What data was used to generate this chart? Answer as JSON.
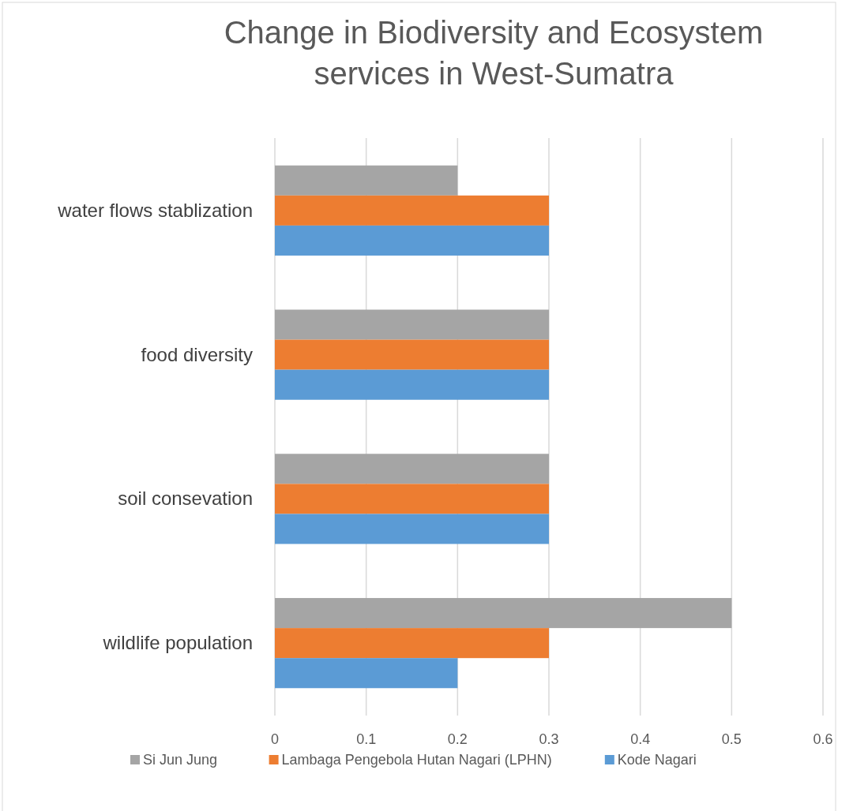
{
  "chart_data": {
    "type": "bar",
    "orientation": "horizontal",
    "title": "Change in Biodiversity and Ecosystem services in West-Sumatra",
    "categories": [
      "water flows stablization",
      "food diversity",
      "soil consevation",
      "wildlife population"
    ],
    "series": [
      {
        "name": "Si Jun Jung",
        "color": "#a5a5a5",
        "values": [
          0.2,
          0.3,
          0.3,
          0.5
        ]
      },
      {
        "name": "Lambaga Pengebola Hutan Nagari (LPHN)",
        "color": "#ed7d31",
        "values": [
          0.3,
          0.3,
          0.3,
          0.3
        ]
      },
      {
        "name": "Kode Nagari",
        "color": "#5b9bd5",
        "values": [
          0.3,
          0.3,
          0.3,
          0.2
        ]
      }
    ],
    "xlim": [
      0,
      0.6
    ],
    "xticks": [
      0,
      0.1,
      0.2,
      0.3,
      0.4,
      0.5,
      0.6
    ],
    "grid": "x",
    "legend": "bottom"
  }
}
